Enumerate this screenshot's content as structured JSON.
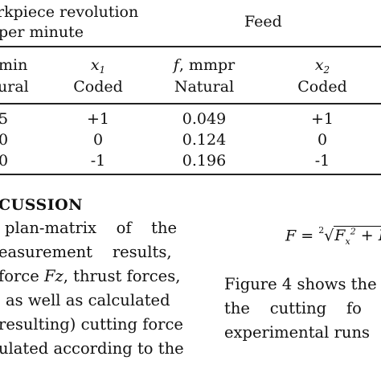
{
  "table": {
    "group_header_left": [
      "rkpiece revolution",
      "per minute"
    ],
    "group_header_right": "Feed",
    "subheaders": [
      {
        "id": "n_natural",
        "line1": "min",
        "line2": "ural"
      },
      {
        "id": "x1",
        "line1": "x1",
        "line2": "Coded"
      },
      {
        "id": "f",
        "line1": "f, mmpr",
        "line2": "Natural"
      },
      {
        "id": "x2",
        "line1": "x2",
        "line2": "Coded"
      }
    ],
    "rows": [
      [
        "5",
        "+1",
        "0.049",
        "+1"
      ],
      [
        "0",
        "0",
        "0.124",
        "0"
      ],
      [
        "0",
        "-1",
        "0.196",
        "-1"
      ]
    ]
  },
  "section_heading": "CUSSION",
  "left_paragraph": [
    "plan-matrix   of   the",
    "easurement    results,",
    "force Fz, thrust forces,",
    "as well as calculated",
    "resulting) cutting force",
    "ulated according to the"
  ],
  "formula": {
    "lhs": "F = ",
    "root_index": "2",
    "radicand": "Fₓ² + F"
  },
  "right_paragraph": [
    "Figure 4 shows the",
    "the    cutting    fo",
    "experimental runs"
  ]
}
